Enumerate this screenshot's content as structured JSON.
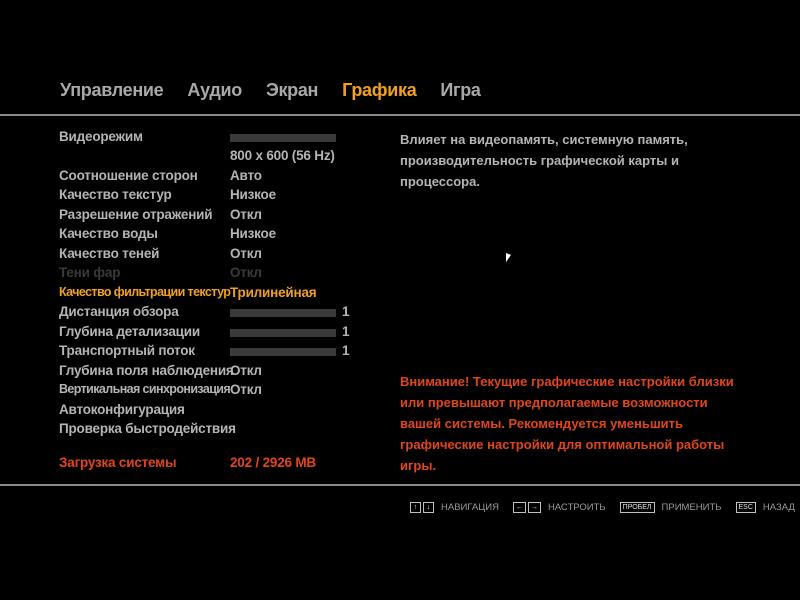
{
  "tabs": [
    {
      "label": "Управление"
    },
    {
      "label": "Аудио"
    },
    {
      "label": "Экран"
    },
    {
      "label": "Графика",
      "active": true
    },
    {
      "label": "Игра"
    }
  ],
  "settings": [
    {
      "label": "Видеорежим",
      "slider": true
    },
    {
      "label": "",
      "value": "800 x 600 (56 Hz)"
    },
    {
      "label": "Соотношение сторон",
      "value": "Авто"
    },
    {
      "label": "Качество текстур",
      "value": "Низкое"
    },
    {
      "label": "Разрешение отражений",
      "value": "Откл"
    },
    {
      "label": "Качество воды",
      "value": "Низкое"
    },
    {
      "label": "Качество теней",
      "value": "Откл"
    },
    {
      "label": "Тени фар",
      "value": "Откл",
      "disabled": true
    },
    {
      "label": "Качество фильтрации текстур",
      "value": "Трилинейная",
      "selected": true
    },
    {
      "label": "Дистанция обзора",
      "slider": true,
      "number": "1"
    },
    {
      "label": "Глубина детализации",
      "slider": true,
      "number": "1"
    },
    {
      "label": "Транспортный поток",
      "slider": true,
      "number": "1"
    },
    {
      "label": "Глубина поля наблюдения",
      "value": "Откл"
    },
    {
      "label": "Вертикальная синхронизация",
      "value": "Откл"
    },
    {
      "label": "Автоконфигурация"
    },
    {
      "label": "Проверка быстродействия"
    }
  ],
  "system_load": {
    "label": "Загрузка системы",
    "value": "202 / 2926 MB"
  },
  "description": "Влияет на видеопамять, системную память, производительность графической карты и процессора.",
  "warning": "Внимание! Текущие графические настройки близки или превышают предполагаемые возможности вашей системы. Рекомендуется уменьшить графические настройки для оптимальной работы игры.",
  "footer": [
    {
      "keys": [
        "↑",
        "↓"
      ],
      "label": "НАВИГАЦИЯ"
    },
    {
      "keys": [
        "←",
        "→"
      ],
      "label": "НАСТРОИТЬ"
    },
    {
      "keys": [
        "ПРОБЕЛ"
      ],
      "label": "ПРИМЕНИТЬ"
    },
    {
      "keys": [
        "ESC"
      ],
      "label": "НАЗАД"
    }
  ],
  "colors": {
    "accent": "#f0a020",
    "warning": "#e0461a",
    "text": "#b4b4b4"
  }
}
